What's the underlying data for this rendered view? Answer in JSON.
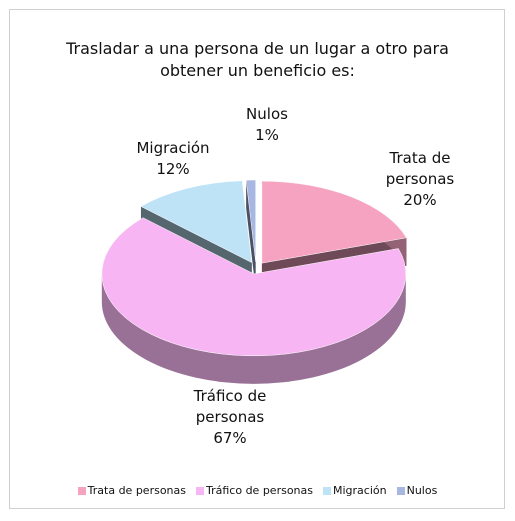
{
  "chart_data": {
    "type": "pie",
    "title": "Trasladar a una persona de un lugar a otro para obtener un beneficio es:",
    "categories": [
      "Trata de personas",
      "Tráfico de personas",
      "Migración",
      "Nulos"
    ],
    "values": [
      20,
      67,
      12,
      1
    ],
    "value_labels": [
      "20%",
      "67%",
      "12%",
      "1%"
    ],
    "colors": [
      "#f5a3c1",
      "#f7b6f3",
      "#bfe3f6",
      "#a8b7e2"
    ],
    "legend": "bottom"
  }
}
